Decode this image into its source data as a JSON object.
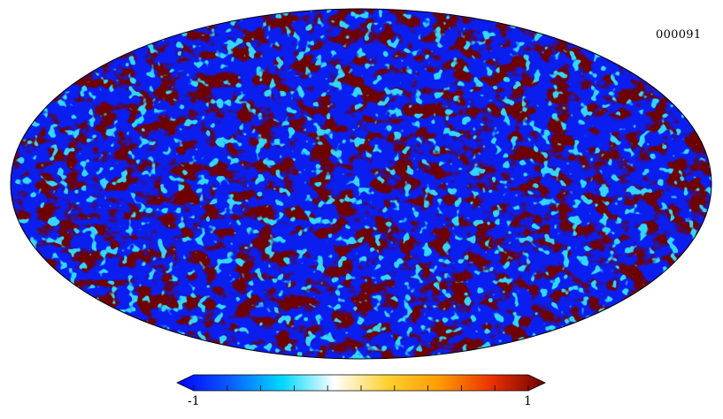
{
  "map": {
    "id_label": "000091",
    "projection": "mollweide",
    "colors": {
      "low": "#0a1ef0",
      "high": "#6e0000",
      "outline": "#000000"
    }
  },
  "colorbar": {
    "min_label": "-1",
    "max_label": "1",
    "stops": [
      "#0000ff",
      "#0a5cff",
      "#00d8ff",
      "#ffffff",
      "#ffd030",
      "#ff9a00",
      "#e83000",
      "#6e0000"
    ]
  }
}
